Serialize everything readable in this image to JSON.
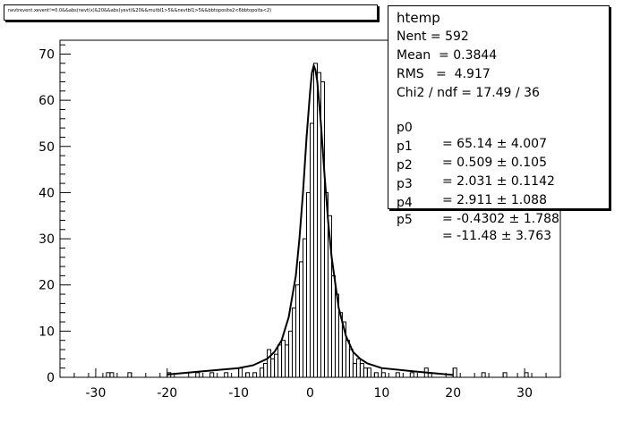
{
  "cut_text": "nevtrevent.xevent!=0.0&&abs(nevt(x)&20&&abs(yevt)&20&&mutbl1>5&&nevtbl1>5&&bbtoposite2<6bbtopoita<2)",
  "stats": {
    "name": "htemp",
    "entries": "Nent = 592",
    "mean": "Mean  = 0.3844",
    "rms": "RMS   =  4.917",
    "chi2": "Chi2 / ndf = 17.49 / 36",
    "params": [
      {
        "name": "p0",
        "value": "= 65.14 ± 4.007"
      },
      {
        "name": "p1",
        "value": "= 0.509 ± 0.105"
      },
      {
        "name": "p2",
        "value": "= 2.031 ± 0.1142"
      },
      {
        "name": "p3",
        "value": "= 2.911 ± 1.088"
      },
      {
        "name": "p4",
        "value": "= -0.4302 ± 1.788"
      },
      {
        "name": "p5",
        "value": "= -11.48 ± 3.763"
      }
    ]
  },
  "chart_data": {
    "type": "bar",
    "title": "",
    "xlabel": "",
    "ylabel": "",
    "xlim": [
      -35,
      35
    ],
    "ylim": [
      0,
      73
    ],
    "xticks": [
      -30,
      -20,
      -10,
      0,
      10,
      20,
      30
    ],
    "yticks": [
      0,
      10,
      20,
      30,
      40,
      50,
      60,
      70
    ],
    "bin_width": 0.5,
    "histogram": [
      {
        "x": -28.5,
        "y": 1
      },
      {
        "x": -28.0,
        "y": 1
      },
      {
        "x": -25.5,
        "y": 1
      },
      {
        "x": -20.0,
        "y": 1
      },
      {
        "x": -16.0,
        "y": 1
      },
      {
        "x": -14.0,
        "y": 1
      },
      {
        "x": -12.0,
        "y": 1
      },
      {
        "x": -10.0,
        "y": 2
      },
      {
        "x": -9.0,
        "y": 1
      },
      {
        "x": -8.0,
        "y": 1
      },
      {
        "x": -7.0,
        "y": 2
      },
      {
        "x": -6.5,
        "y": 3
      },
      {
        "x": -6.0,
        "y": 6
      },
      {
        "x": -5.5,
        "y": 4
      },
      {
        "x": -5.0,
        "y": 5
      },
      {
        "x": -4.5,
        "y": 7
      },
      {
        "x": -4.0,
        "y": 8
      },
      {
        "x": -3.5,
        "y": 7
      },
      {
        "x": -3.0,
        "y": 10
      },
      {
        "x": -2.5,
        "y": 15
      },
      {
        "x": -2.0,
        "y": 20
      },
      {
        "x": -1.5,
        "y": 25
      },
      {
        "x": -1.0,
        "y": 30
      },
      {
        "x": -0.5,
        "y": 40
      },
      {
        "x": 0.0,
        "y": 55
      },
      {
        "x": 0.5,
        "y": 68
      },
      {
        "x": 1.0,
        "y": 66
      },
      {
        "x": 1.5,
        "y": 64
      },
      {
        "x": 2.0,
        "y": 40
      },
      {
        "x": 2.5,
        "y": 35
      },
      {
        "x": 3.0,
        "y": 22
      },
      {
        "x": 3.5,
        "y": 18
      },
      {
        "x": 4.0,
        "y": 14
      },
      {
        "x": 4.5,
        "y": 12
      },
      {
        "x": 5.0,
        "y": 8
      },
      {
        "x": 5.5,
        "y": 6
      },
      {
        "x": 6.0,
        "y": 3
      },
      {
        "x": 6.5,
        "y": 4
      },
      {
        "x": 7.0,
        "y": 3
      },
      {
        "x": 7.5,
        "y": 2
      },
      {
        "x": 8.0,
        "y": 2
      },
      {
        "x": 9.0,
        "y": 1
      },
      {
        "x": 10.0,
        "y": 1
      },
      {
        "x": 12.0,
        "y": 1
      },
      {
        "x": 14.0,
        "y": 1
      },
      {
        "x": 16.0,
        "y": 2
      },
      {
        "x": 20.0,
        "y": 2
      },
      {
        "x": 24.0,
        "y": 1
      },
      {
        "x": 27.0,
        "y": 1
      },
      {
        "x": 30.0,
        "y": 1
      }
    ],
    "fit_curve": [
      {
        "x": -20,
        "y": 0.6
      },
      {
        "x": -15,
        "y": 1.3
      },
      {
        "x": -10,
        "y": 2.0
      },
      {
        "x": -8,
        "y": 2.6
      },
      {
        "x": -6,
        "y": 4.0
      },
      {
        "x": -5,
        "y": 5.5
      },
      {
        "x": -4,
        "y": 8.0
      },
      {
        "x": -3,
        "y": 13
      },
      {
        "x": -2,
        "y": 22
      },
      {
        "x": -1.5,
        "y": 30
      },
      {
        "x": -1,
        "y": 40
      },
      {
        "x": -0.5,
        "y": 52
      },
      {
        "x": 0,
        "y": 62
      },
      {
        "x": 0.25,
        "y": 66
      },
      {
        "x": 0.5,
        "y": 67.5
      },
      {
        "x": 0.75,
        "y": 66.5
      },
      {
        "x": 1,
        "y": 64
      },
      {
        "x": 1.5,
        "y": 55
      },
      {
        "x": 2,
        "y": 44
      },
      {
        "x": 2.5,
        "y": 34
      },
      {
        "x": 3,
        "y": 26
      },
      {
        "x": 4,
        "y": 15
      },
      {
        "x": 5,
        "y": 9
      },
      {
        "x": 6,
        "y": 5.5
      },
      {
        "x": 7,
        "y": 4
      },
      {
        "x": 8,
        "y": 3
      },
      {
        "x": 10,
        "y": 2
      },
      {
        "x": 15,
        "y": 1.2
      },
      {
        "x": 20,
        "y": 0.5
      }
    ]
  }
}
